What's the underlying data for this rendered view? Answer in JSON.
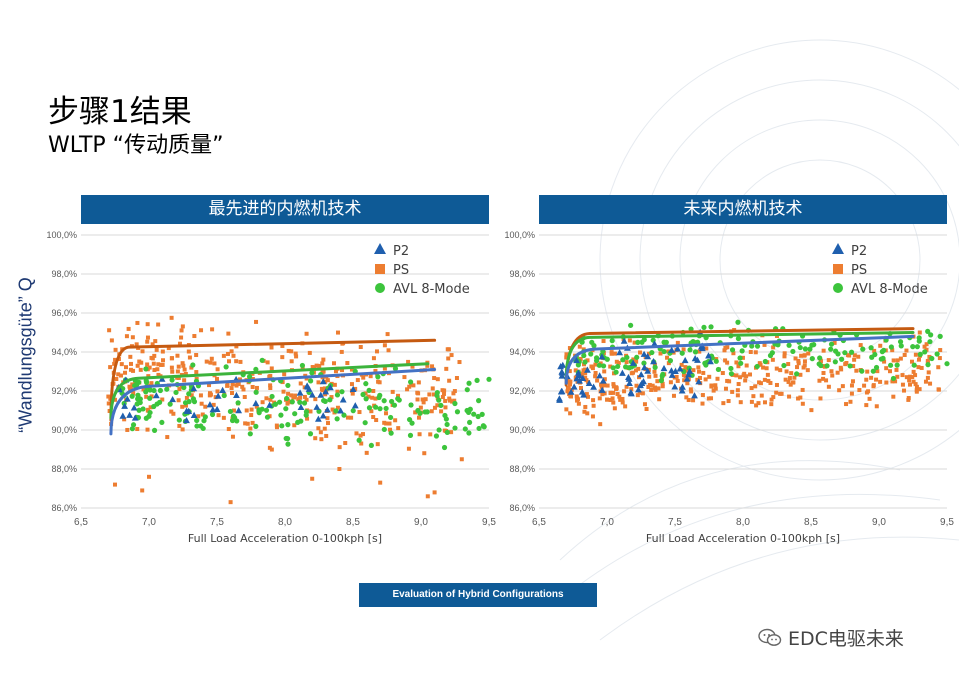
{
  "page": {
    "title": "步骤1结果",
    "subtitle": "WLTP “传动质量”",
    "ylabel": "“Wandlungsgüte” Q",
    "footer_button": "Evaluation of Hybrid Configurations",
    "watermark": "EDC电驱未来",
    "colors": {
      "header": "#0e5a96",
      "p2": "#1f5fae",
      "ps": "#ed7d31",
      "avl": "#3cc43c",
      "ps_line": "#c55a11",
      "p2_line": "#4472c4",
      "avl_line": "#3cb33c"
    }
  },
  "chart_data": [
    {
      "type": "scatter",
      "title": "最先进的内燃机技术",
      "xlabel": "Full Load Acceleration 0-100kph [s]",
      "xlim": [
        6.5,
        9.5
      ],
      "ylim": [
        86.0,
        100.0
      ],
      "x_ticks": [
        "6,5",
        "7,0",
        "7,5",
        "8,0",
        "8,5",
        "9,0",
        "9,5"
      ],
      "y_ticks": [
        "86,0%",
        "88,0%",
        "90,0%",
        "92,0%",
        "94,0%",
        "96,0%",
        "98,0%",
        "100,0%"
      ],
      "legend": [
        "P2",
        "PS",
        "AVL 8-Mode"
      ],
      "legend_position": "top-right",
      "series": [
        {
          "name": "PS",
          "marker": "square",
          "color": "#ed7d31",
          "cloud": {
            "x_range": [
              6.7,
              9.3
            ],
            "y_center_start": 93.0,
            "y_center_end": 91.6,
            "spread": 1.3,
            "count": 430,
            "outliers": [
              [
                6.75,
                87.2
              ],
              [
                6.95,
                86.9
              ],
              [
                7.6,
                86.3
              ],
              [
                8.7,
                87.3
              ],
              [
                9.05,
                86.6
              ],
              [
                9.1,
                86.8
              ],
              [
                7.0,
                87.6
              ],
              [
                8.4,
                88.0
              ],
              [
                8.2,
                87.5
              ],
              [
                9.3,
                88.5
              ]
            ]
          }
        },
        {
          "name": "AVL 8-Mode",
          "marker": "circle",
          "color": "#3cc43c",
          "cloud": {
            "x_range": [
              6.8,
              9.5
            ],
            "y_center_start": 91.4,
            "y_center_end": 91.0,
            "spread": 0.9,
            "count": 190,
            "outliers": [
              [
                9.45,
                90.8
              ],
              [
                9.35,
                90.9
              ],
              [
                9.5,
                92.6
              ],
              [
                9.25,
                90.1
              ]
            ]
          }
        },
        {
          "name": "P2",
          "marker": "triangle",
          "color": "#1f5fae",
          "cloud": {
            "x_range": [
              6.75,
              8.6
            ],
            "y_center_start": 91.2,
            "y_center_end": 91.6,
            "spread": 0.6,
            "count": 45,
            "outliers": []
          }
        }
      ],
      "fit_lines": [
        {
          "name": "PS",
          "color": "#c55a11",
          "start": [
            6.72,
            90.5
          ],
          "knee": [
            6.78,
            94.2
          ],
          "end": [
            9.1,
            94.6
          ]
        },
        {
          "name": "AVL 8-Mode",
          "color": "#3cb33c",
          "start": [
            6.72,
            90.6
          ],
          "knee": [
            6.85,
            92.6
          ],
          "end": [
            9.05,
            93.4
          ]
        },
        {
          "name": "P2",
          "color": "#4472c4",
          "start": [
            6.72,
            89.8
          ],
          "knee": [
            6.95,
            92.2
          ],
          "end": [
            9.1,
            93.1
          ]
        }
      ]
    },
    {
      "type": "scatter",
      "title": "未来内燃机技术",
      "xlabel": "Full Load Acceleration 0-100kph [s]",
      "xlim": [
        6.5,
        9.5
      ],
      "ylim": [
        86.0,
        100.0
      ],
      "x_ticks": [
        "6,5",
        "7,0",
        "7,5",
        "8,0",
        "8,5",
        "9,0",
        "9,5"
      ],
      "y_ticks": [
        "86,0%",
        "88,0%",
        "90,0%",
        "92,0%",
        "94,0%",
        "96,0%",
        "98,0%",
        "100,0%"
      ],
      "legend": [
        "P2",
        "PS",
        "AVL 8-Mode"
      ],
      "legend_position": "top-right",
      "series": [
        {
          "name": "PS",
          "marker": "square",
          "color": "#ed7d31",
          "cloud": {
            "x_range": [
              6.7,
              9.45
            ],
            "y_center_start": 92.6,
            "y_center_end": 93.0,
            "spread": 0.9,
            "count": 420,
            "outliers": [
              [
                9.35,
                94.4
              ],
              [
                9.3,
                95.0
              ],
              [
                9.45,
                94.1
              ],
              [
                6.95,
                90.3
              ]
            ]
          }
        },
        {
          "name": "AVL 8-Mode",
          "marker": "circle",
          "color": "#3cc43c",
          "cloud": {
            "x_range": [
              6.75,
              9.5
            ],
            "y_center_start": 93.8,
            "y_center_end": 94.2,
            "spread": 0.7,
            "count": 170,
            "outliers": [
              [
                9.45,
                94.8
              ],
              [
                9.5,
                93.4
              ]
            ]
          }
        },
        {
          "name": "P2",
          "marker": "triangle",
          "color": "#1f5fae",
          "cloud": {
            "x_range": [
              6.65,
              7.85
            ],
            "y_center_start": 92.4,
            "y_center_end": 93.6,
            "spread": 0.7,
            "count": 70,
            "outliers": [
              [
                6.65,
                91.6
              ],
              [
                7.15,
                94.2
              ],
              [
                7.7,
                94.3
              ]
            ]
          }
        }
      ],
      "fit_lines": [
        {
          "name": "PS",
          "color": "#c55a11",
          "start": [
            6.7,
            92.3
          ],
          "knee": [
            6.8,
            94.9
          ],
          "end": [
            9.25,
            95.2
          ]
        },
        {
          "name": "AVL 8-Mode",
          "color": "#3cb33c",
          "start": [
            6.7,
            92.6
          ],
          "knee": [
            6.8,
            94.7
          ],
          "end": [
            9.25,
            95.0
          ]
        },
        {
          "name": "P2",
          "color": "#4472c4",
          "start": [
            6.7,
            92.4
          ],
          "knee": [
            6.85,
            94.1
          ],
          "end": [
            9.25,
            94.8
          ]
        }
      ]
    }
  ]
}
